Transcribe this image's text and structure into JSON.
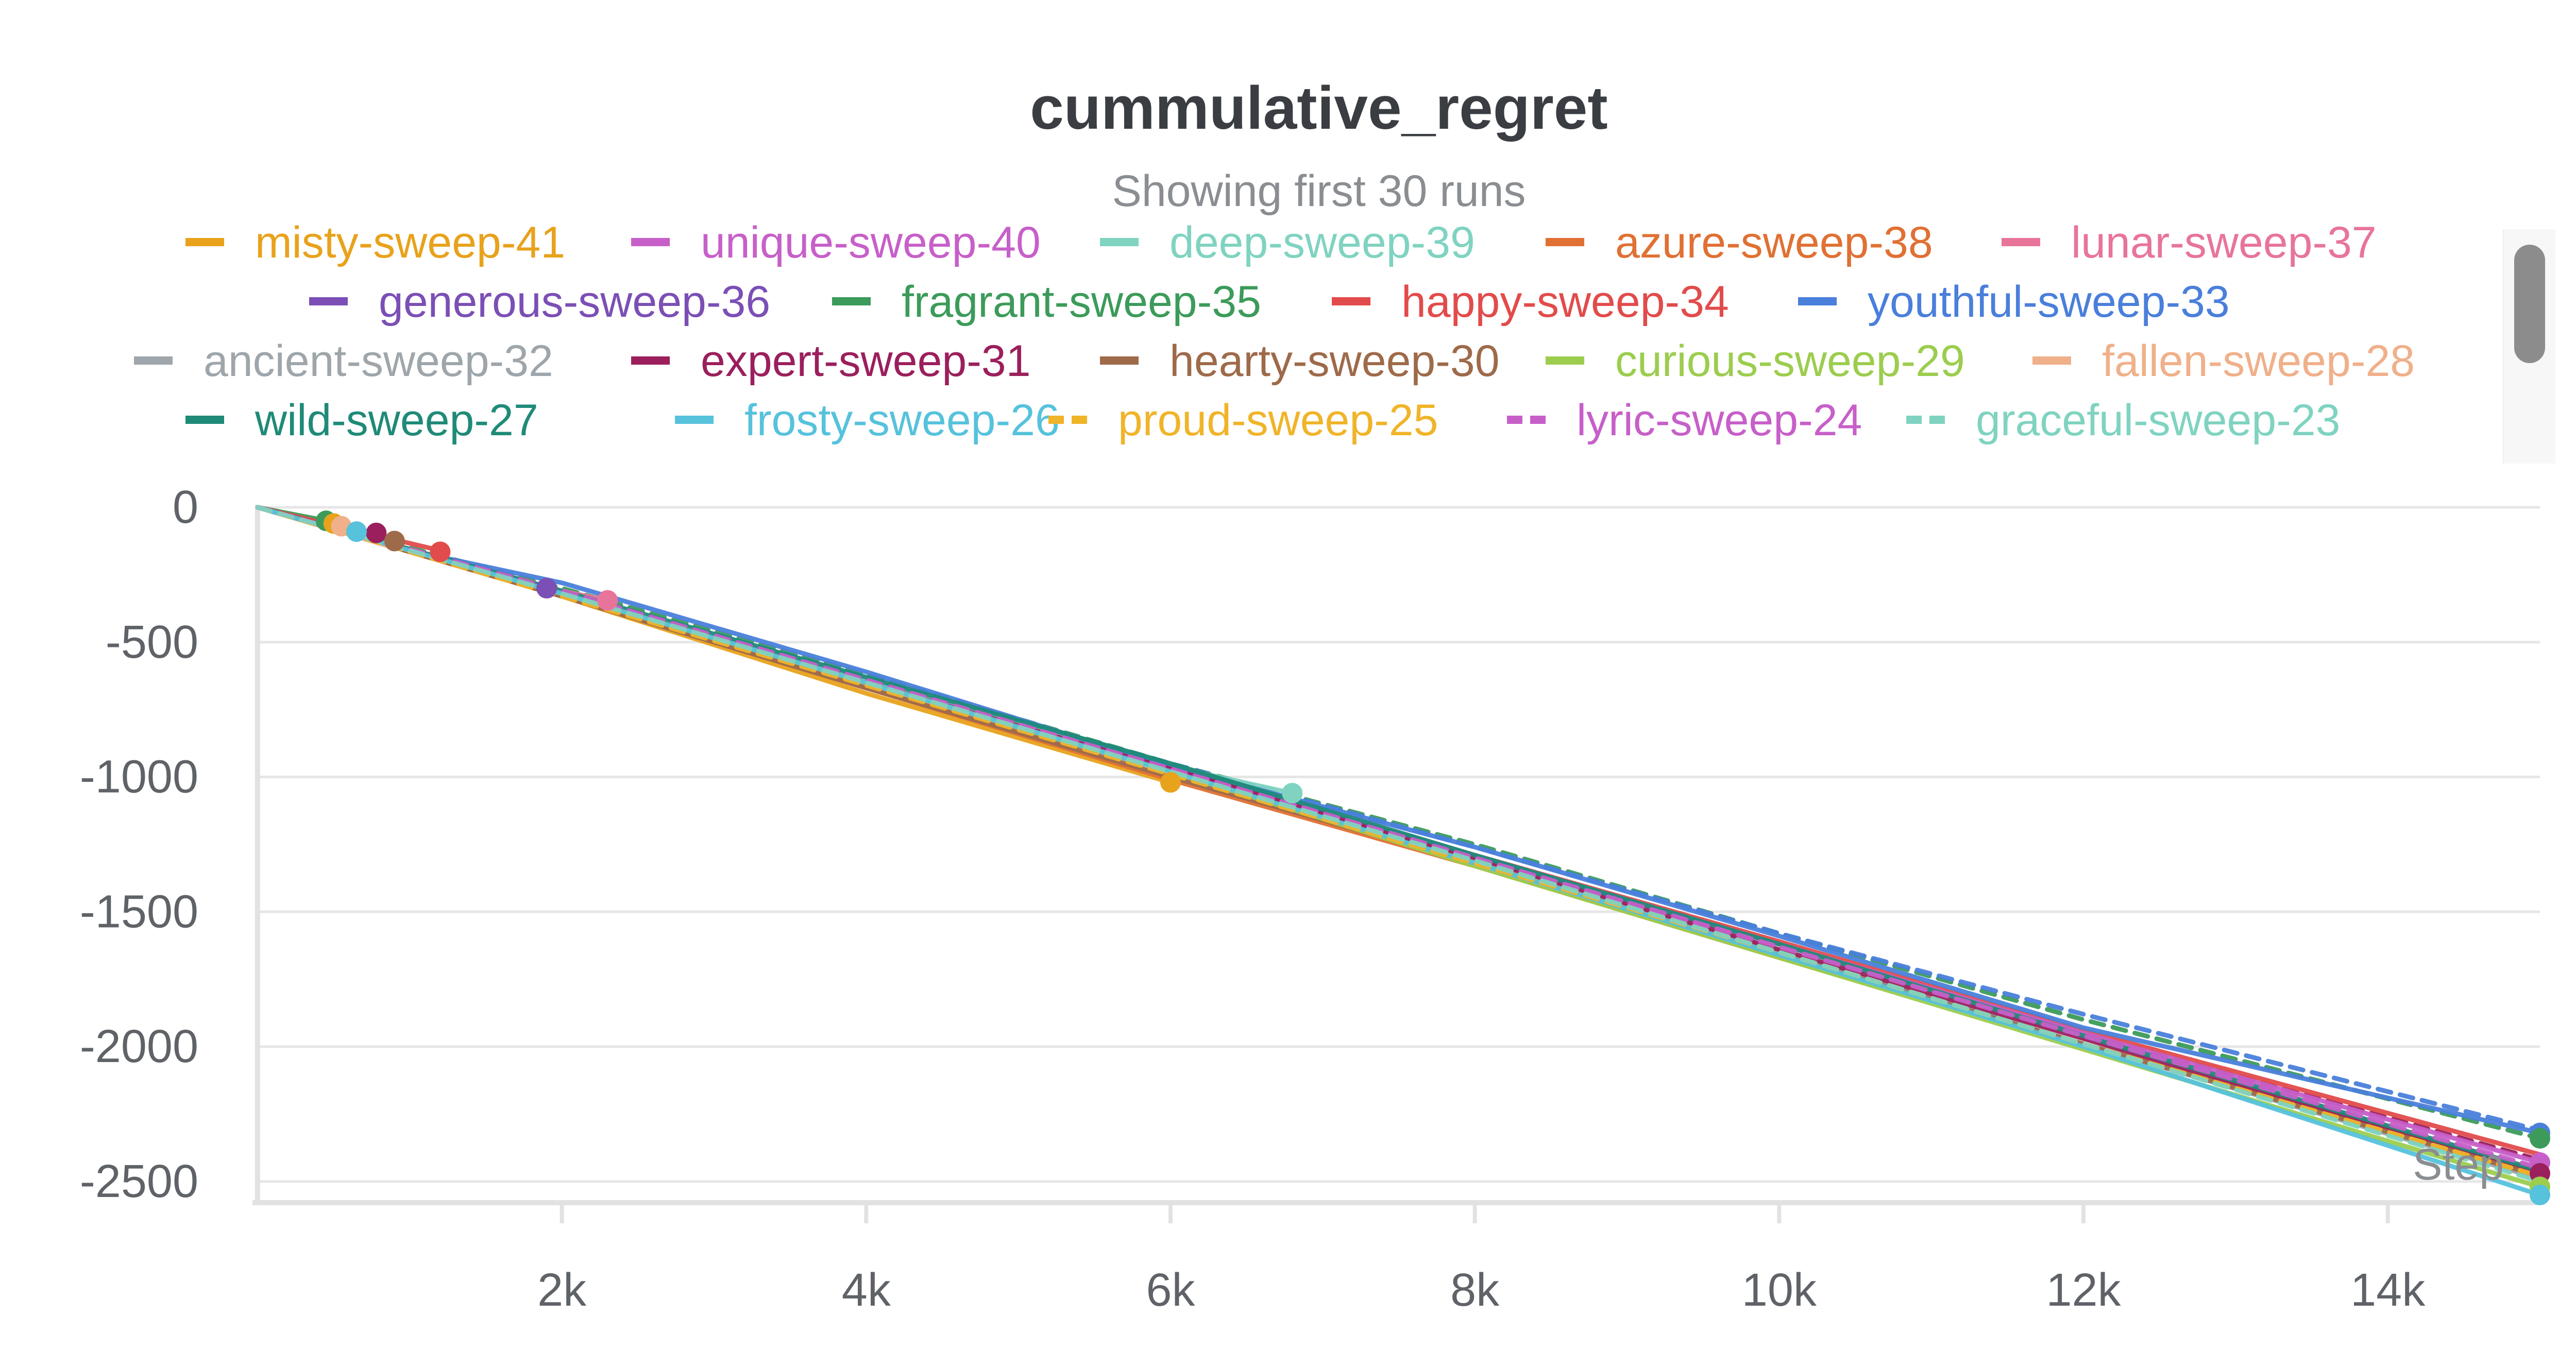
{
  "chart_data": {
    "type": "line",
    "title": "cummulative_regret",
    "subtitle": "Showing first 30 runs",
    "xlabel": "Step",
    "ylabel": "",
    "xlim": [
      0,
      15000
    ],
    "ylim": [
      -2550,
      0
    ],
    "x_ticks": [
      2000,
      4000,
      6000,
      8000,
      10000,
      12000,
      14000
    ],
    "x_tick_labels": [
      "2k",
      "4k",
      "6k",
      "8k",
      "10k",
      "12k",
      "14k"
    ],
    "y_ticks": [
      0,
      -500,
      -1000,
      -1500,
      -2000,
      -2500
    ],
    "y_tick_labels": [
      "0",
      "-500",
      "-1000",
      "-1500",
      "-2000",
      "-2500"
    ],
    "grid": true,
    "legend_position": "top",
    "series": [
      {
        "name": "misty-sweep-41",
        "color": "#e8a21c",
        "dash": false,
        "x": [
          0,
          2000,
          4000,
          6000
        ],
        "y": [
          0,
          -330,
          -690,
          -1020
        ]
      },
      {
        "name": "unique-sweep-40",
        "color": "#c75fc9",
        "dash": false,
        "x": [
          0,
          2000,
          4000,
          6000,
          8000,
          10000,
          12000,
          15000
        ],
        "y": [
          0,
          -320,
          -650,
          -970,
          -1290,
          -1620,
          -1950,
          -2430
        ]
      },
      {
        "name": "deep-sweep-39",
        "color": "#7fd3c0",
        "dash": false,
        "x": [
          0,
          2000,
          4000,
          6000,
          6800
        ],
        "y": [
          0,
          -320,
          -640,
          -960,
          -1060
        ]
      },
      {
        "name": "azure-sweep-38",
        "color": "#e07033",
        "dash": false,
        "x": [
          0,
          2000,
          4000,
          6000,
          8000,
          10000,
          12000,
          15000
        ],
        "y": [
          0,
          -330,
          -670,
          -1010,
          -1330,
          -1670,
          -1990,
          -2470
        ]
      },
      {
        "name": "lunar-sweep-37",
        "color": "#e8749a",
        "dash": false,
        "x": [
          0,
          2000,
          2300
        ],
        "y": [
          0,
          -310,
          -345
        ]
      },
      {
        "name": "generous-sweep-36",
        "color": "#7b4fb5",
        "dash": false,
        "x": [
          0,
          1900
        ],
        "y": [
          0,
          -300
        ]
      },
      {
        "name": "fragrant-sweep-35",
        "color": "#3c9b5a",
        "dash": false,
        "x": [
          0,
          500
        ],
        "y": [
          0,
          -55
        ]
      },
      {
        "name": "happy-sweep-34",
        "color": "#e24b4b",
        "dash": false,
        "x": [
          0,
          1200
        ],
        "y": [
          0,
          -160
        ]
      },
      {
        "name": "youthful-sweep-33",
        "color": "#4a7fdb",
        "dash": false,
        "x": [
          0,
          1000,
          2000,
          4000,
          6000,
          8000,
          10000,
          12000,
          15000
        ],
        "y": [
          0,
          -160,
          -280,
          -610,
          -960,
          -1260,
          -1590,
          -1930,
          -2320
        ]
      },
      {
        "name": "ancient-sweep-32",
        "color": "#9ea6ab",
        "dash": false,
        "x": [
          0,
          2000,
          4000,
          6000,
          8000,
          10000,
          12000,
          15000
        ],
        "y": [
          0,
          -320,
          -660,
          -980,
          -1310,
          -1650,
          -1990,
          -2490
        ]
      },
      {
        "name": "expert-sweep-31",
        "color": "#9b1f5c",
        "dash": false,
        "x": [
          0,
          2000,
          4000,
          6000,
          8000,
          10000,
          12000,
          15000
        ],
        "y": [
          0,
          -320,
          -650,
          -970,
          -1300,
          -1640,
          -1970,
          -2470
        ]
      },
      {
        "name": "hearty-sweep-30",
        "color": "#9e6a4a",
        "dash": false,
        "x": [
          0,
          2000,
          4000,
          6000,
          8000,
          10000,
          12000,
          15000
        ],
        "y": [
          0,
          -330,
          -670,
          -1000,
          -1320,
          -1660,
          -1990,
          -2480
        ]
      },
      {
        "name": "curious-sweep-29",
        "color": "#9ccd4e",
        "dash": false,
        "x": [
          0,
          2000,
          4000,
          6000,
          8000,
          10000,
          12000,
          15000
        ],
        "y": [
          0,
          -320,
          -650,
          -980,
          -1330,
          -1670,
          -2010,
          -2520
        ]
      },
      {
        "name": "fallen-sweep-28",
        "color": "#f0b08a",
        "dash": false,
        "x": [
          0,
          900
        ],
        "y": [
          0,
          -150
        ]
      },
      {
        "name": "wild-sweep-27",
        "color": "#1f8a78",
        "dash": false,
        "x": [
          0,
          2000,
          4000,
          6000,
          8000,
          10000,
          12000,
          15000
        ],
        "y": [
          0,
          -310,
          -630,
          -950,
          -1290,
          -1620,
          -1960,
          -2460
        ]
      },
      {
        "name": "frosty-sweep-26",
        "color": "#56c2dc",
        "dash": false,
        "x": [
          0,
          2000,
          4000,
          6000,
          8000,
          10000,
          12000,
          15000
        ],
        "y": [
          0,
          -320,
          -650,
          -980,
          -1320,
          -1660,
          -2000,
          -2550
        ]
      },
      {
        "name": "proud-sweep-25",
        "color": "#f0b429",
        "dash": true,
        "x": [
          0,
          2000,
          4000,
          6000,
          8000,
          10000,
          12000,
          15000
        ],
        "y": [
          0,
          -330,
          -660,
          -990,
          -1320,
          -1650,
          -1990,
          -2480
        ]
      },
      {
        "name": "lyric-sweep-24",
        "color": "#c75fc9",
        "dash": true,
        "x": [
          0,
          2000,
          4000,
          6000,
          8000,
          10000,
          12000,
          15000
        ],
        "y": [
          0,
          -310,
          -640,
          -970,
          -1300,
          -1630,
          -1960,
          -2450
        ]
      },
      {
        "name": "graceful-sweep-23",
        "color": "#7fd3c0",
        "dash": true,
        "x": [
          0,
          2000,
          4000,
          6000,
          8000,
          10000,
          12000,
          15000
        ],
        "y": [
          0,
          -320,
          -650,
          -980,
          -1310,
          -1650,
          -1990,
          -2500
        ]
      }
    ],
    "extra_series": [
      {
        "color": "#3c9b5a",
        "dash": true,
        "x": [
          0,
          2000,
          4000,
          6000,
          8000,
          10000,
          12000,
          15000
        ],
        "y": [
          0,
          -300,
          -620,
          -950,
          -1250,
          -1580,
          -1900,
          -2340
        ]
      },
      {
        "color": "#4a7fdb",
        "dash": true,
        "x": [
          0,
          2000,
          4000,
          6000,
          8000,
          10000,
          12000,
          15000
        ],
        "y": [
          0,
          -310,
          -630,
          -950,
          -1260,
          -1580,
          -1880,
          -2310
        ]
      },
      {
        "color": "#9b1f5c",
        "dash": true,
        "x": [
          0,
          2000,
          4000,
          6000,
          8000,
          10000,
          12000,
          15000
        ],
        "y": [
          0,
          -320,
          -640,
          -970,
          -1300,
          -1620,
          -1950,
          -2420
        ]
      },
      {
        "color": "#e24b4b",
        "dash": false,
        "x": [
          0,
          2000,
          4000,
          6000,
          8000,
          10000,
          12000,
          15000
        ],
        "y": [
          0,
          -320,
          -640,
          -970,
          -1290,
          -1610,
          -1940,
          -2400
        ]
      }
    ],
    "markers": [
      {
        "color": "#3c9b5a",
        "x": 450,
        "y": -50
      },
      {
        "color": "#e8a21c",
        "x": 500,
        "y": -60
      },
      {
        "color": "#f0b08a",
        "x": 550,
        "y": -70
      },
      {
        "color": "#9b1f5c",
        "x": 780,
        "y": -95
      },
      {
        "color": "#9e6a4a",
        "x": 900,
        "y": -125
      },
      {
        "color": "#56c2dc",
        "x": 650,
        "y": -90
      },
      {
        "color": "#e24b4b",
        "x": 1200,
        "y": -165
      },
      {
        "color": "#7b4fb5",
        "x": 1900,
        "y": -300
      },
      {
        "color": "#e8749a",
        "x": 2300,
        "y": -345
      },
      {
        "color": "#e8a21c",
        "x": 6000,
        "y": -1020
      },
      {
        "color": "#7fd3c0",
        "x": 6800,
        "y": -1060
      },
      {
        "color": "#4a7fdb",
        "x": 15000,
        "y": -2320
      },
      {
        "color": "#3c9b5a",
        "x": 15000,
        "y": -2340
      },
      {
        "color": "#c75fc9",
        "x": 15000,
        "y": -2430
      },
      {
        "color": "#9b1f5c",
        "x": 15000,
        "y": -2470
      },
      {
        "color": "#9ccd4e",
        "x": 15000,
        "y": -2520
      },
      {
        "color": "#56c2dc",
        "x": 15000,
        "y": -2550
      }
    ]
  }
}
